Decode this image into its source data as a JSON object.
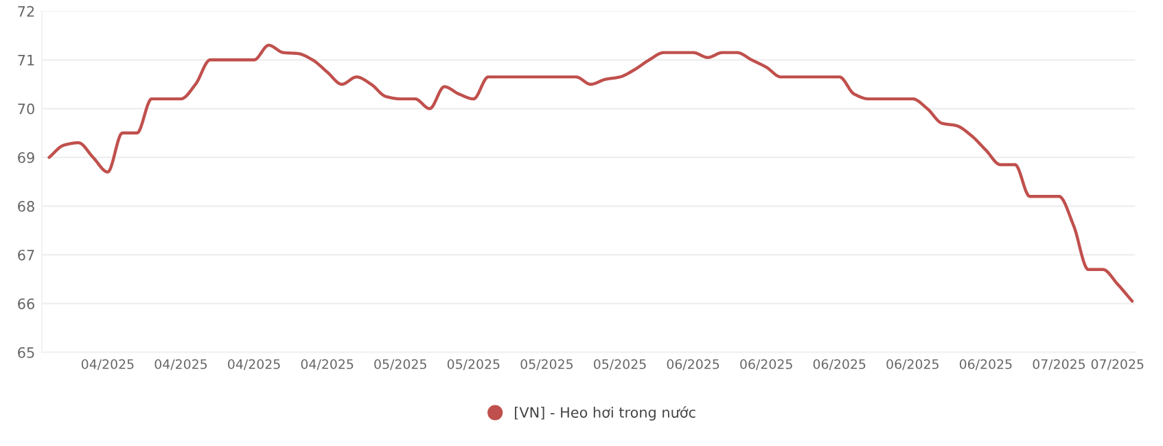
{
  "chart_data": {
    "type": "line",
    "categories": [
      null,
      null,
      null,
      null,
      "04/2025",
      null,
      null,
      null,
      null,
      "04/2025",
      null,
      null,
      null,
      null,
      "04/2025",
      null,
      null,
      null,
      null,
      "04/2025",
      null,
      null,
      null,
      null,
      "05/2025",
      null,
      null,
      null,
      null,
      "05/2025",
      null,
      null,
      null,
      null,
      "05/2025",
      null,
      null,
      null,
      null,
      "05/2025",
      null,
      null,
      null,
      null,
      "06/2025",
      null,
      null,
      null,
      null,
      "06/2025",
      null,
      null,
      null,
      null,
      "06/2025",
      null,
      null,
      null,
      null,
      "06/2025",
      null,
      null,
      null,
      null,
      "06/2025",
      null,
      null,
      null,
      null,
      "07/2025",
      null,
      null,
      null,
      "07/2025",
      null
    ],
    "series": [
      {
        "name": "[VN] - Heo hơi trong nước",
        "color": "#c0504d",
        "values": [
          69.0,
          69.25,
          69.3,
          69.0,
          68.7,
          69.5,
          69.5,
          70.2,
          70.2,
          70.2,
          70.5,
          71.0,
          71.0,
          71.0,
          71.0,
          71.3,
          71.15,
          71.13,
          71.0,
          70.75,
          70.5,
          70.65,
          70.5,
          70.25,
          70.2,
          70.2,
          70.0,
          70.45,
          70.3,
          70.2,
          70.65,
          70.65,
          70.65,
          70.65,
          70.65,
          70.65,
          70.65,
          70.5,
          70.6,
          70.65,
          70.8,
          71.0,
          71.15,
          71.15,
          71.15,
          71.05,
          71.15,
          71.15,
          71.0,
          70.85,
          70.65,
          70.65,
          70.65,
          70.65,
          70.65,
          70.3,
          70.2,
          70.2,
          70.2,
          70.2,
          70.0,
          69.7,
          69.65,
          69.45,
          69.15,
          68.85,
          68.85,
          68.2,
          68.2,
          68.2,
          67.6,
          66.7,
          66.7,
          66.4,
          66.05
        ]
      }
    ],
    "ylim": [
      65,
      72
    ],
    "yticks": [
      65,
      66,
      67,
      68,
      69,
      70,
      71,
      72
    ],
    "grid": "y",
    "legend": "bottom",
    "marker": "none",
    "line_style": "solid"
  }
}
